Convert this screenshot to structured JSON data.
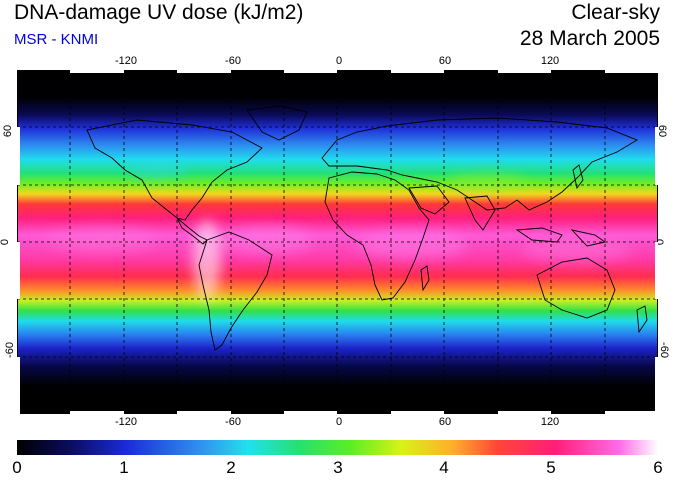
{
  "header": {
    "title": "DNA-damage UV dose (kJ/m2)",
    "source": "MSR - KNMI",
    "condition": "Clear-sky",
    "date": "28 March 2005"
  },
  "map": {
    "projection": "equirectangular",
    "lon_range": [
      -180,
      180
    ],
    "lat_range": [
      -90,
      90
    ],
    "lon_ticks": [
      "-120",
      "-60",
      "0",
      "60",
      "120"
    ],
    "lat_ticks": [
      "60",
      "0",
      "-60"
    ],
    "gridlines": "dashed",
    "colors": {
      "ocean_background": "#000000",
      "coastline": "#000000",
      "gridline": "#000000"
    }
  },
  "colorbar": {
    "min": 0,
    "max": 6,
    "labels": [
      "0",
      "1",
      "2",
      "3",
      "4",
      "5",
      "6"
    ]
  }
}
